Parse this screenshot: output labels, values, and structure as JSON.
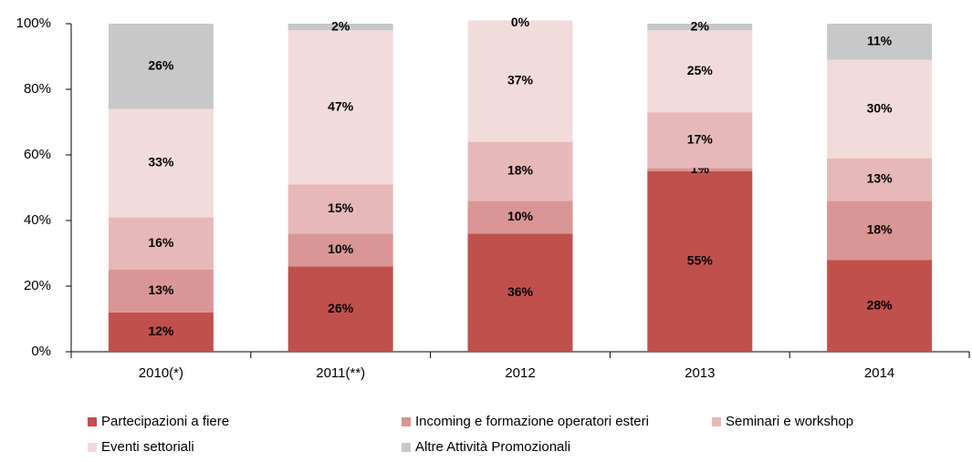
{
  "chart_data": {
    "type": "stacked_bar",
    "categories": [
      "2010(*)",
      "2011(**)",
      "2012",
      "2013",
      "2014"
    ],
    "series": [
      {
        "name": "Partecipazioni a fiere",
        "color": "#c0504d",
        "values": [
          12,
          26,
          36,
          55,
          28
        ],
        "value_labels": [
          "12%",
          "26%",
          "36%",
          "55%",
          "28%"
        ]
      },
      {
        "name": "Incoming e formazione operatori esteri",
        "color": "#d99694",
        "values": [
          13,
          10,
          10,
          1,
          18
        ],
        "value_labels": [
          "13%",
          "10%",
          "10%",
          "1%",
          "18%"
        ]
      },
      {
        "name": "Seminari e workshop",
        "color": "#e6b9b8",
        "values": [
          16,
          15,
          18,
          17,
          13
        ],
        "value_labels": [
          "16%",
          "15%",
          "18%",
          "17%",
          "13%"
        ]
      },
      {
        "name": "Eventi settoriali",
        "color": "#f2dcdb",
        "values": [
          33,
          47,
          37,
          25,
          30
        ],
        "value_labels": [
          "33%",
          "47%",
          "37%",
          "25%",
          "30%"
        ]
      },
      {
        "name": "Altre Attività Promozionali",
        "color": "#c8c8c8",
        "values": [
          26,
          2,
          0,
          2,
          11
        ],
        "value_labels": [
          "26%",
          "2%",
          "0%",
          "2%",
          "11%"
        ]
      }
    ],
    "ylim": [
      0,
      100
    ],
    "yticks": [
      {
        "value": 0,
        "label": "0%"
      },
      {
        "value": 20,
        "label": "20%"
      },
      {
        "value": 40,
        "label": "40%"
      },
      {
        "value": 60,
        "label": "60%"
      },
      {
        "value": 80,
        "label": "80%"
      },
      {
        "value": 100,
        "label": "100%"
      }
    ],
    "grid": false,
    "legend": "bottom"
  }
}
